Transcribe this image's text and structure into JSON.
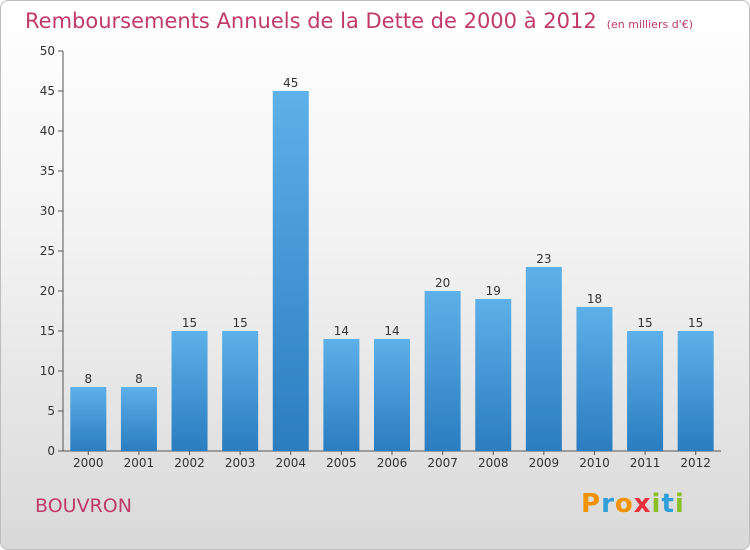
{
  "title": "Remboursements Annuels de la Dette de 2000 à 2012",
  "unit_label": "(en milliers d'€)",
  "town": "BOUVRON",
  "logo": {
    "letters": [
      "P",
      "r",
      "o",
      "x",
      "i",
      "t",
      "i"
    ],
    "colors": [
      "#f39200",
      "#2e9fd8",
      "#f39200",
      "#e7303a",
      "#8bbf26",
      "#2e9fd8",
      "#8bbf26"
    ]
  },
  "colors": {
    "bar_top": "#5eb0e8",
    "bar_bottom": "#2a7dc0",
    "title": "#c03a6a"
  },
  "chart_data": {
    "type": "bar",
    "title": "Remboursements Annuels de la Dette de 2000 à 2012",
    "xlabel": "",
    "ylabel": "",
    "categories": [
      "2000",
      "2001",
      "2002",
      "2003",
      "2004",
      "2005",
      "2006",
      "2007",
      "2008",
      "2009",
      "2010",
      "2011",
      "2012"
    ],
    "values": [
      8,
      8,
      15,
      15,
      45,
      14,
      14,
      20,
      19,
      23,
      18,
      15,
      15
    ],
    "ylim": [
      0,
      50
    ],
    "yticks": [
      0,
      5,
      10,
      15,
      20,
      25,
      30,
      35,
      40,
      45,
      50
    ],
    "grid": false,
    "data_labels": true
  }
}
